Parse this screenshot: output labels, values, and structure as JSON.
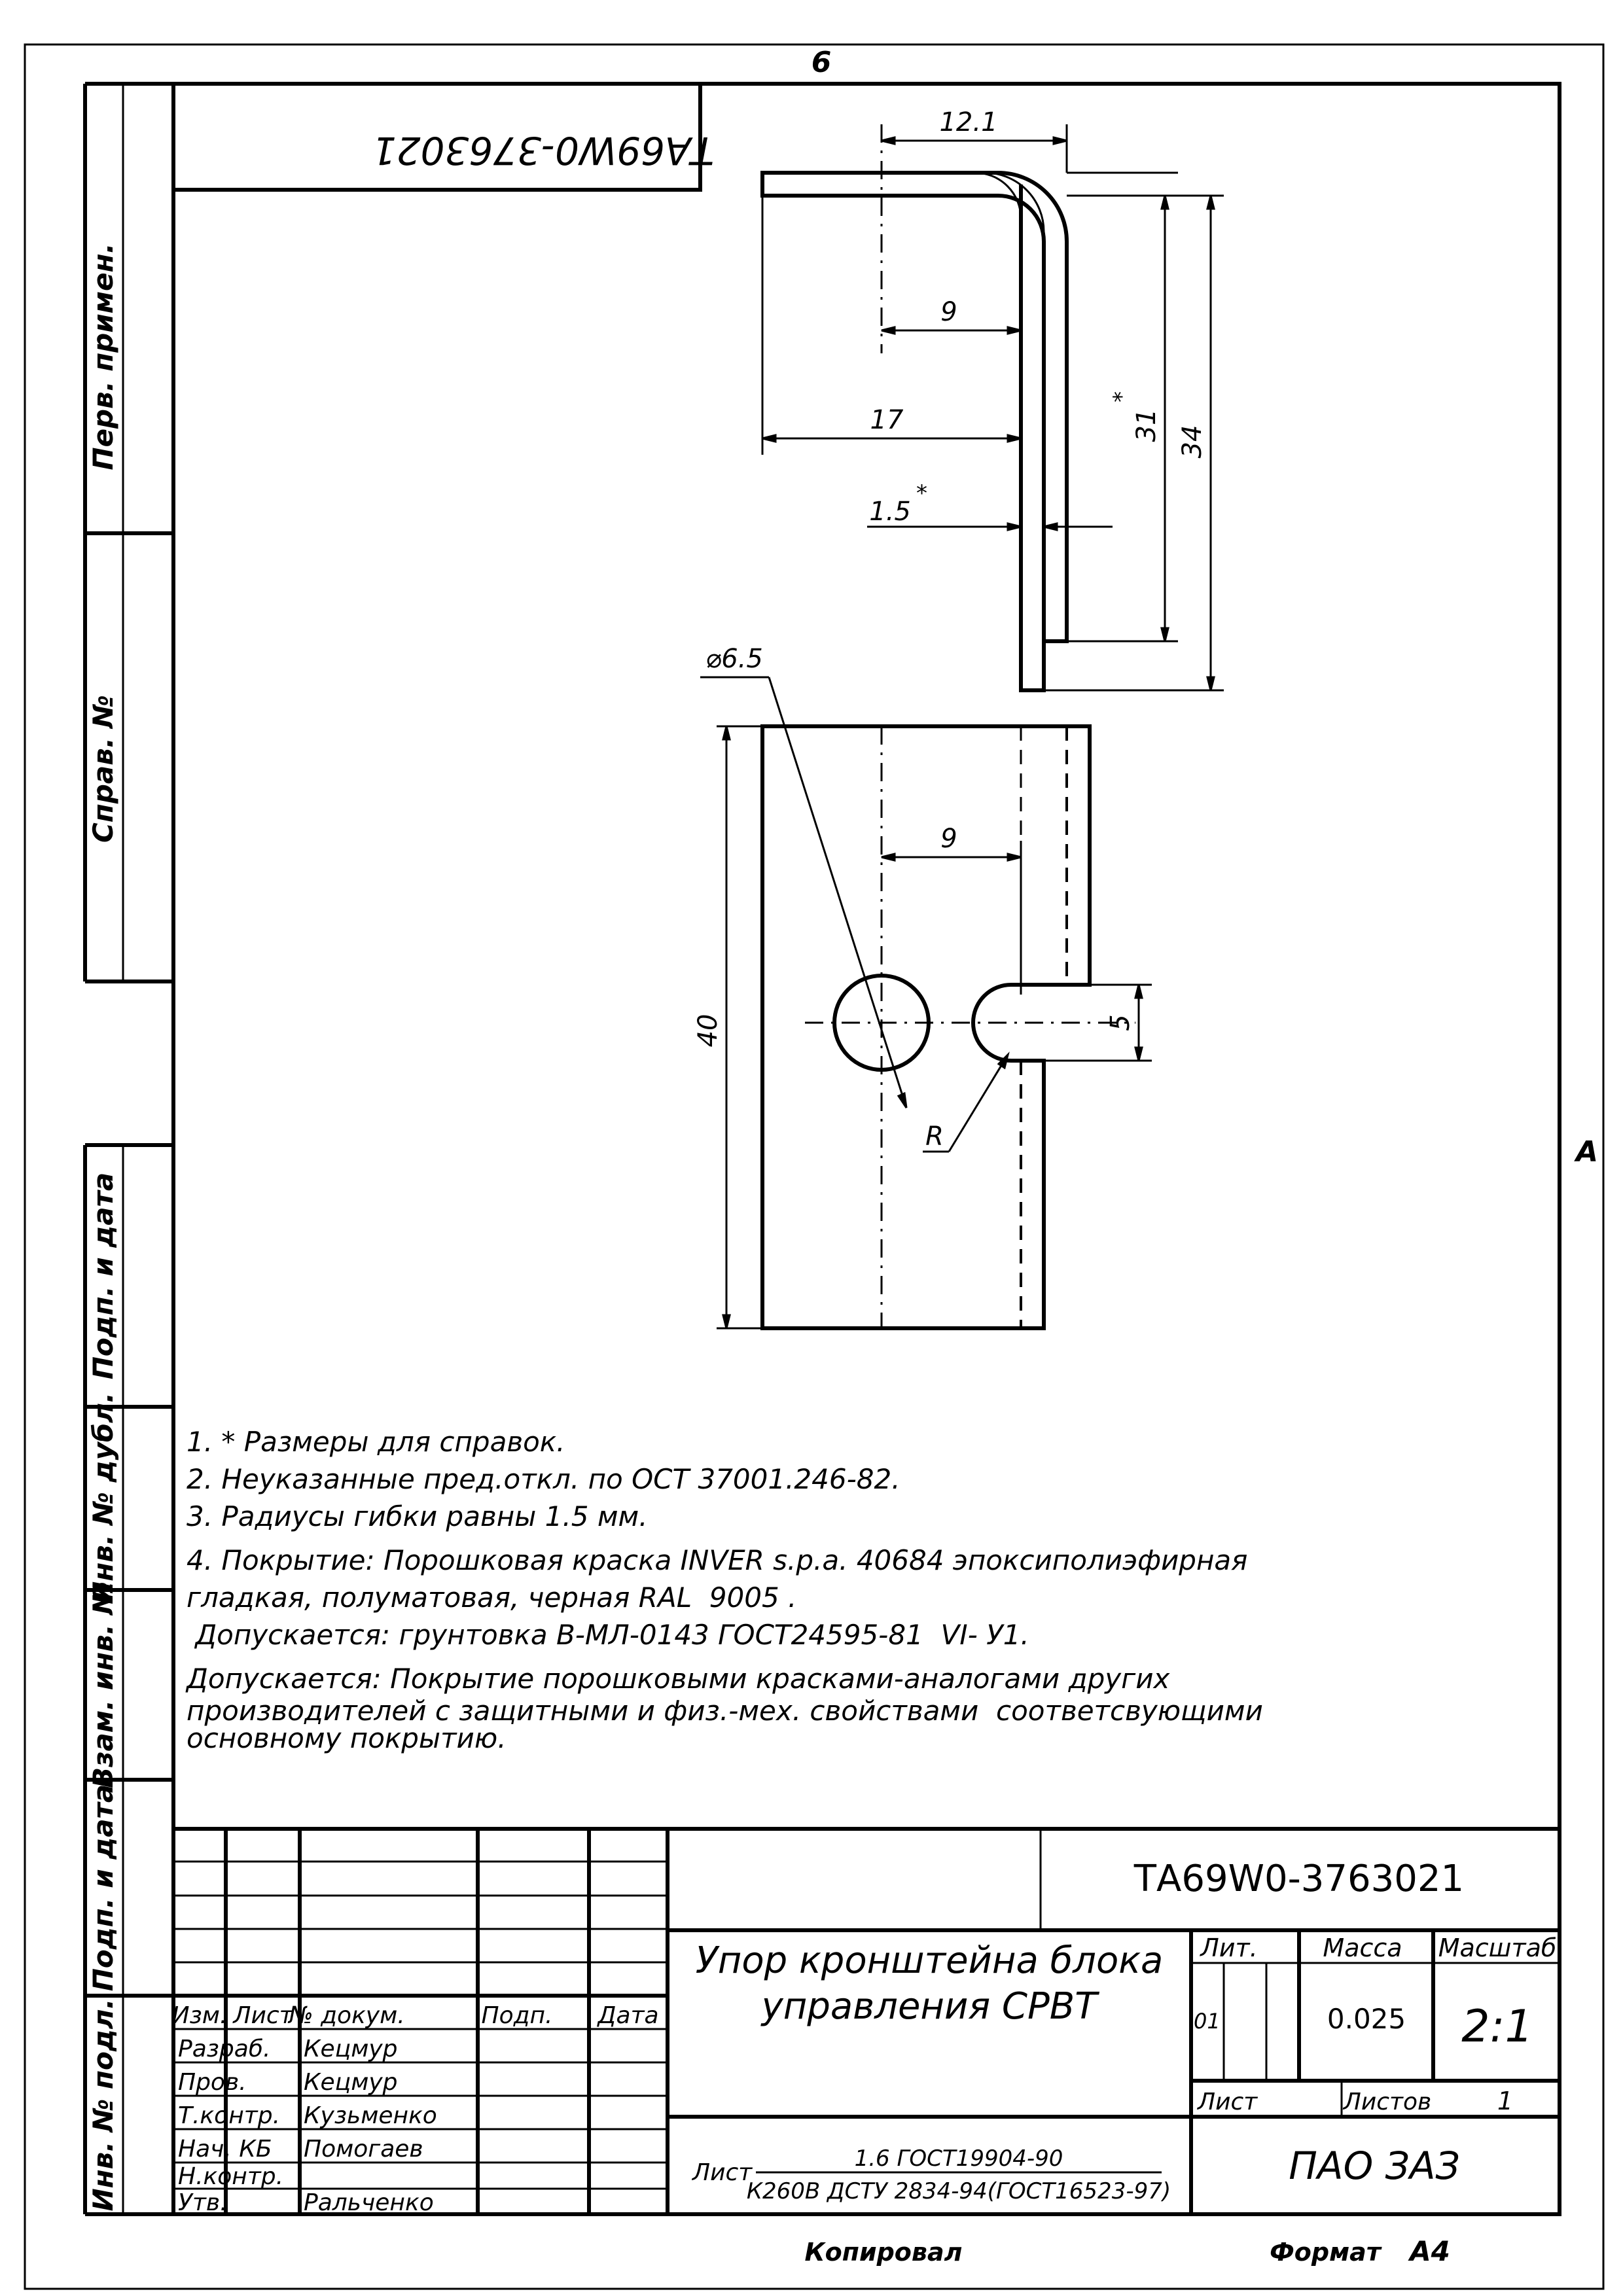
{
  "header": {
    "sheet_mark": "6",
    "side_mark": "A",
    "mirrored_code": "ТА69W0-3763021"
  },
  "side_columns": {
    "perv_primen": "Перв. примен.",
    "sprav_no": "Справ. №",
    "podp_data_1": "Подп. и дата",
    "inv_dubl": "Инв. № дубл.",
    "vzam_inv": "Взам. инв. №",
    "podp_data_2": "Подп. и дата",
    "inv_podl": "Инв. № подл."
  },
  "dimensions": {
    "top_width": "12.1",
    "top_inner": "9",
    "top_17": "17",
    "thickness": "1.5",
    "height_31": "31",
    "height_34": "34",
    "hole_dia": "⌀6.5",
    "slot_offset": "9",
    "length_40": "40",
    "slot_width": "5",
    "radius": "R",
    "star": "*"
  },
  "notes": [
    "1. * Размеры для справок.",
    "2. Неуказанные пред.откл. по ОСТ 37001.246-82.",
    "3. Радиусы гибки равны 1.5 мм.",
    "4. Покрытие: Порошковая краска INVER s.p.a. 40684 эпоксиполиэфирная",
    "гладкая, полуматовая, черная RAL  9005 .",
    " Допускается: грунтовка В-МЛ-0143 ГОСТ24595-81  VI- У1.",
    "Допускается: Покрытие порошковыми красками-аналогами других",
    "производителей с защитными и физ.-мех. свойствами  соответсвующими",
    "основному покрытию."
  ],
  "title_block": {
    "doc_code": "ТА69W0-3763021",
    "name_line1": "Упор кронштейна блока",
    "name_line2": "управления СРВТ",
    "headers": {
      "izm": "Изм.",
      "list": "Лист",
      "doc_no": "№ докум.",
      "podp": "Подп.",
      "data": "Дата"
    },
    "roles": [
      {
        "role": "Разраб.",
        "name": "Кецмур"
      },
      {
        "role": "Пров.",
        "name": "Кецмур"
      },
      {
        "role": "Т.контр.",
        "name": "Кузьменко"
      },
      {
        "role": "Нач. КБ",
        "name": "Помогаев"
      },
      {
        "role": "Н.контр.",
        "name": ""
      },
      {
        "role": "Утв.",
        "name": "Ральченко"
      }
    ],
    "lit_label": "Лит.",
    "massa_label": "Масса",
    "masshtab_label": "Масштаб",
    "lit_value": "01",
    "massa_value": "0.025",
    "masshtab_value": "2:1",
    "list_label": "Лист",
    "listov_label": "Листов",
    "listov_value": "1",
    "material_label": "Лист",
    "material_top": "1.6 ГОСТ19904-90",
    "material_bottom": "К260В ДСТУ 2834-94(ГОСТ16523-97)",
    "company": "ПАО  ЗАЗ"
  },
  "footer": {
    "copied": "Копировал",
    "format_label": "Формат",
    "format_value": "А4"
  }
}
